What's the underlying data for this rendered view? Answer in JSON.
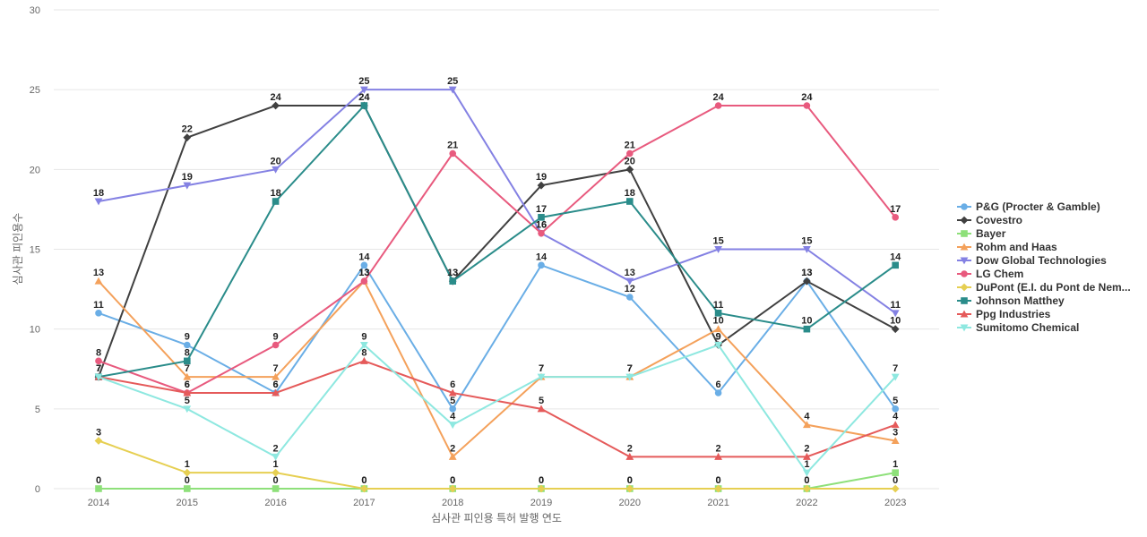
{
  "chart_data": {
    "type": "line",
    "title": "",
    "xlabel": "심사관 피인용 특허 발행 연도",
    "ylabel": "심사관 피인용수",
    "x": [
      "2014",
      "2015",
      "2016",
      "2017",
      "2018",
      "2019",
      "2020",
      "2021",
      "2022",
      "2023"
    ],
    "ylim": [
      0,
      30
    ],
    "yticks": [
      0,
      5,
      10,
      15,
      20,
      25,
      30
    ],
    "grid": true,
    "legend_position": "right",
    "series": [
      {
        "name": "P&G (Procter & Gamble)",
        "color": "#6aaee6",
        "marker": "circle",
        "values": [
          11,
          9,
          6,
          14,
          5,
          14,
          12,
          6,
          13,
          5
        ]
      },
      {
        "name": "Covestro",
        "color": "#404040",
        "marker": "diamond",
        "values": [
          7,
          22,
          24,
          24,
          13,
          19,
          20,
          9,
          13,
          10
        ]
      },
      {
        "name": "Bayer",
        "color": "#8ee07a",
        "marker": "square",
        "values": [
          0,
          0,
          0,
          0,
          0,
          0,
          0,
          0,
          0,
          1
        ]
      },
      {
        "name": "Rohm and Haas",
        "color": "#f4a15b",
        "marker": "triangle",
        "values": [
          13,
          7,
          7,
          13,
          2,
          7,
          7,
          10,
          4,
          3
        ]
      },
      {
        "name": "Dow Global Technologies",
        "color": "#8481e3",
        "marker": "triangle-down",
        "values": [
          18,
          19,
          20,
          25,
          25,
          16,
          13,
          15,
          15,
          11
        ]
      },
      {
        "name": "LG Chem",
        "color": "#e85a7e",
        "marker": "circle",
        "values": [
          8,
          6,
          9,
          13,
          21,
          16,
          21,
          24,
          24,
          17
        ]
      },
      {
        "name": "DuPont (E.I. du Pont de Nem...",
        "color": "#e6cf52",
        "marker": "diamond",
        "values": [
          3,
          1,
          1,
          0,
          0,
          0,
          0,
          0,
          0,
          0
        ]
      },
      {
        "name": "Johnson Matthey",
        "color": "#2a8c8a",
        "marker": "square",
        "values": [
          7,
          8,
          18,
          24,
          13,
          17,
          18,
          11,
          10,
          14
        ]
      },
      {
        "name": "Ppg Industries",
        "color": "#e55a5a",
        "marker": "triangle",
        "values": [
          7,
          6,
          6,
          8,
          6,
          5,
          2,
          2,
          2,
          4
        ]
      },
      {
        "name": "Sumitomo Chemical",
        "color": "#8ee8e0",
        "marker": "triangle-down",
        "values": [
          7,
          5,
          2,
          9,
          4,
          7,
          7,
          9,
          1,
          7
        ]
      }
    ]
  }
}
